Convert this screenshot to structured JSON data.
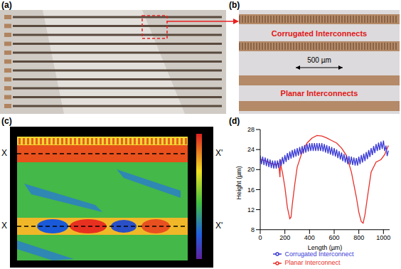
{
  "panels": [
    {
      "label": "(a)"
    },
    {
      "label": "(b)",
      "texts": [
        "Corrugated Interconnects",
        "Planar Interconnects"
      ],
      "scale_bar": "500 µm"
    },
    {
      "label": "(c)",
      "section_lines": [
        {
          "start": "X",
          "end": "X'"
        },
        {
          "start": "X",
          "end": "X'"
        }
      ]
    }
  ],
  "chart_data": {
    "label": "(d)",
    "type": "line",
    "x_label": "Length (µm)",
    "y_label": "Height (µm)",
    "xlim": [
      0,
      1050
    ],
    "xticks": [
      0,
      200,
      400,
      600,
      800,
      1000
    ],
    "ylim": [
      8,
      28
    ],
    "yticks": [
      8,
      12,
      16,
      20,
      24,
      28
    ],
    "legend": "bottom",
    "series": [
      {
        "name": "Planar Interconnect",
        "color": "#e8302a",
        "x": [
          0,
          40,
          80,
          120,
          150,
          160,
          165,
          170,
          180,
          200,
          220,
          240,
          250,
          260,
          280,
          300,
          340,
          380,
          420,
          460,
          500,
          540,
          580,
          620,
          660,
          700,
          740,
          780,
          800,
          820,
          835,
          850,
          870,
          900,
          940,
          980,
          1010,
          1040
        ],
        "values": [
          22,
          21.8,
          21.3,
          21,
          21.2,
          18.5,
          22,
          20.5,
          19.5,
          16.5,
          12.5,
          10.2,
          10.5,
          13,
          17,
          20.5,
          23.5,
          25.3,
          26.3,
          26.8,
          26.7,
          26.3,
          25.8,
          25.3,
          24.3,
          22.8,
          19.5,
          14.5,
          11.5,
          9.6,
          9.3,
          11,
          14.5,
          19.5,
          21.5,
          22,
          23,
          24.8
        ]
      },
      {
        "name": "Corrugated Interconnect",
        "color": "#3b3bd6",
        "x": [
          0,
          10,
          20,
          30,
          40,
          50,
          60,
          70,
          80,
          90,
          100,
          110,
          120,
          130,
          140,
          150,
          160,
          170,
          180,
          190,
          200,
          210,
          220,
          230,
          240,
          250,
          260,
          270,
          280,
          290,
          300,
          310,
          320,
          330,
          340,
          350,
          360,
          370,
          380,
          390,
          400,
          410,
          420,
          430,
          440,
          450,
          460,
          470,
          480,
          490,
          500,
          510,
          520,
          530,
          540,
          550,
          560,
          570,
          580,
          590,
          600,
          610,
          620,
          630,
          640,
          650,
          660,
          670,
          680,
          690,
          700,
          710,
          720,
          730,
          740,
          750,
          760,
          770,
          780,
          790,
          800,
          810,
          820,
          830,
          840,
          850,
          860,
          870,
          880,
          890,
          900,
          910,
          920,
          930,
          940,
          950,
          960,
          970,
          980,
          990,
          1000,
          1010,
          1020,
          1030,
          1040
        ],
        "values": [
          22.8,
          21.1,
          22.6,
          20.9,
          22.4,
          20.7,
          22.2,
          20.5,
          22.0,
          20.3,
          21.8,
          20.2,
          21.8,
          20.2,
          21.8,
          20.3,
          22.1,
          20.7,
          22.5,
          21.1,
          22.9,
          21.5,
          23.3,
          21.9,
          23.6,
          22.2,
          23.9,
          22.4,
          24.1,
          22.6,
          24.3,
          22.8,
          24.5,
          23.0,
          24.7,
          23.2,
          24.9,
          23.4,
          25.1,
          23.6,
          25.3,
          23.7,
          25.3,
          23.7,
          25.3,
          23.7,
          25.3,
          23.7,
          25.3,
          23.7,
          25.3,
          23.6,
          25.1,
          23.4,
          24.9,
          23.2,
          24.7,
          23.0,
          24.5,
          22.8,
          24.3,
          22.6,
          24.0,
          22.3,
          23.7,
          22.0,
          23.4,
          21.7,
          23.1,
          21.4,
          22.8,
          21.1,
          22.7,
          21.0,
          22.6,
          20.9,
          22.4,
          20.8,
          22.3,
          20.8,
          22.6,
          21.1,
          22.9,
          21.4,
          23.2,
          21.7,
          23.5,
          22.1,
          23.9,
          22.5,
          24.3,
          22.9,
          24.7,
          23.3,
          25.1,
          23.7,
          25.4,
          23.9,
          25.6,
          24.1,
          25.8,
          23.7,
          24.8,
          22.7,
          23.8
        ]
      }
    ]
  }
}
